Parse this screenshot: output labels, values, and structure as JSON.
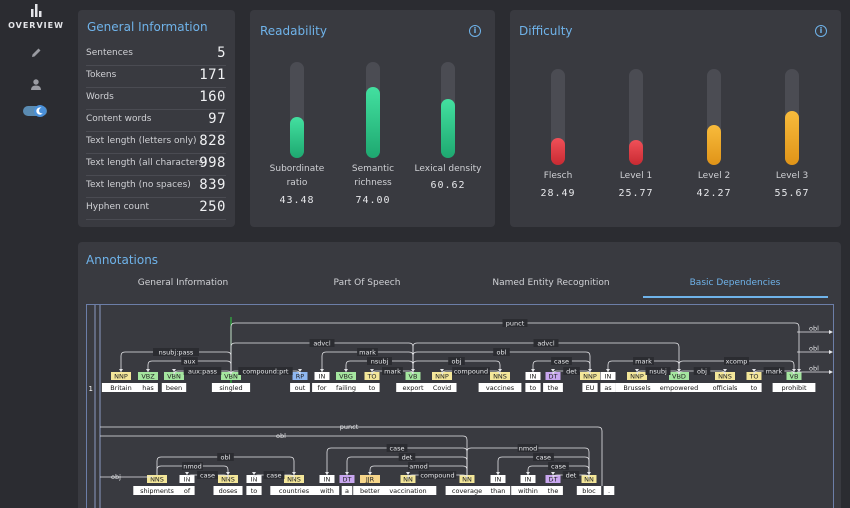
{
  "sidebar": {
    "overview_label": "OVERVIEW",
    "items": [
      {
        "icon": "bar-chart-icon"
      },
      {
        "icon": "pencil-icon"
      },
      {
        "icon": "user-icon"
      },
      {
        "icon": "dark-mode-toggle-icon"
      }
    ]
  },
  "general_information": {
    "title": "General Information",
    "rows": [
      {
        "label": "Sentences",
        "value": "5"
      },
      {
        "label": "Tokens",
        "value": "171"
      },
      {
        "label": "Words",
        "value": "160"
      },
      {
        "label": "Content words",
        "value": "97"
      },
      {
        "label": "Text length (letters only)",
        "value": "828"
      },
      {
        "label": "Text length (all characters)",
        "value": "998"
      },
      {
        "label": "Text length (no spaces)",
        "value": "839"
      },
      {
        "label": "Hyphen count",
        "value": "250"
      }
    ]
  },
  "readability": {
    "title": "Readability",
    "metrics": [
      {
        "label1": "Subordinate",
        "label2": "ratio",
        "value": "43.48",
        "fill": 0.43
      },
      {
        "label1": "Semantic",
        "label2": "richness",
        "value": "74.00",
        "fill": 0.74
      },
      {
        "label1": "Lexical density",
        "label2": "",
        "value": "60.62",
        "fill": 0.61
      }
    ]
  },
  "difficulty": {
    "title": "Difficulty",
    "metrics": [
      {
        "label": "Flesch",
        "value": "28.49",
        "fill": 0.28,
        "color": "#e03e46"
      },
      {
        "label": "Level 1",
        "value": "25.77",
        "fill": 0.26,
        "color": "#e03e46"
      },
      {
        "label": "Level 2",
        "value": "42.27",
        "fill": 0.42,
        "color": "#f2a623"
      },
      {
        "label": "Level 3",
        "value": "55.67",
        "fill": 0.56,
        "color": "#f2a623"
      }
    ]
  },
  "annotations": {
    "title": "Annotations",
    "tabs": [
      "General Information",
      "Part Of Speech",
      "Named Entity Recognition",
      "Basic Dependencies"
    ],
    "active_tab": 3,
    "sentence_number": "1",
    "row1": [
      {
        "word": "Britain",
        "tag": "NNP"
      },
      {
        "word": "has",
        "tag": "VBZ"
      },
      {
        "word": "been",
        "tag": "VBN"
      },
      {
        "word": "singled",
        "tag": "VBN"
      },
      {
        "word": "out",
        "tag": "RP"
      },
      {
        "word": "for",
        "tag": "IN"
      },
      {
        "word": "failing",
        "tag": "VBG"
      },
      {
        "word": "to",
        "tag": "TO"
      },
      {
        "word": "export",
        "tag": "VB"
      },
      {
        "word": "Covid",
        "tag": "NNP"
      },
      {
        "word": "vaccines",
        "tag": "NNS"
      },
      {
        "word": "to",
        "tag": "IN"
      },
      {
        "word": "the",
        "tag": "DT"
      },
      {
        "word": "EU",
        "tag": "NNP"
      },
      {
        "word": "as",
        "tag": "IN"
      },
      {
        "word": "Brussels",
        "tag": "NNP"
      },
      {
        "word": "empowered",
        "tag": "VBD"
      },
      {
        "word": "officials",
        "tag": "NNS"
      },
      {
        "word": "to",
        "tag": "TO"
      },
      {
        "word": "prohibit",
        "tag": "VB"
      }
    ],
    "row2": [
      {
        "word": "shipments",
        "tag": "NNS"
      },
      {
        "word": "of",
        "tag": "IN"
      },
      {
        "word": "doses",
        "tag": "NNS"
      },
      {
        "word": "to",
        "tag": "IN"
      },
      {
        "word": "countries",
        "tag": "NNS"
      },
      {
        "word": "with",
        "tag": "IN"
      },
      {
        "word": "a",
        "tag": "DT"
      },
      {
        "word": "better",
        "tag": "JJR"
      },
      {
        "word": "vaccination",
        "tag": "NN"
      },
      {
        "word": "coverage",
        "tag": "NN"
      },
      {
        "word": "than",
        "tag": "IN"
      },
      {
        "word": "within",
        "tag": "IN"
      },
      {
        "word": "the",
        "tag": "DT"
      },
      {
        "word": "bloc",
        "tag": "NN"
      },
      {
        "word": ".",
        "tag": ""
      }
    ],
    "row1_relations": [
      "punct",
      "obl",
      "obl",
      "obl",
      "advcl",
      "nsubj:pass",
      "aux",
      "aux:pass",
      "compound:prt",
      "mark",
      "nsubj",
      "mark",
      "obj",
      "compound",
      "obl",
      "case",
      "det",
      "advcl",
      "mark",
      "nsubj",
      "obj",
      "xcomp",
      "mark"
    ],
    "row2_relations": [
      "punct",
      "obl",
      "obl",
      "obj",
      "nmod",
      "case",
      "case",
      "case",
      "det",
      "amod",
      "compound",
      "nmod",
      "case",
      "case",
      "det"
    ]
  },
  "colors": {
    "accent": "#6fb3ea",
    "green": "#2ecc8c",
    "red": "#e03e46",
    "orange": "#f2a623"
  }
}
